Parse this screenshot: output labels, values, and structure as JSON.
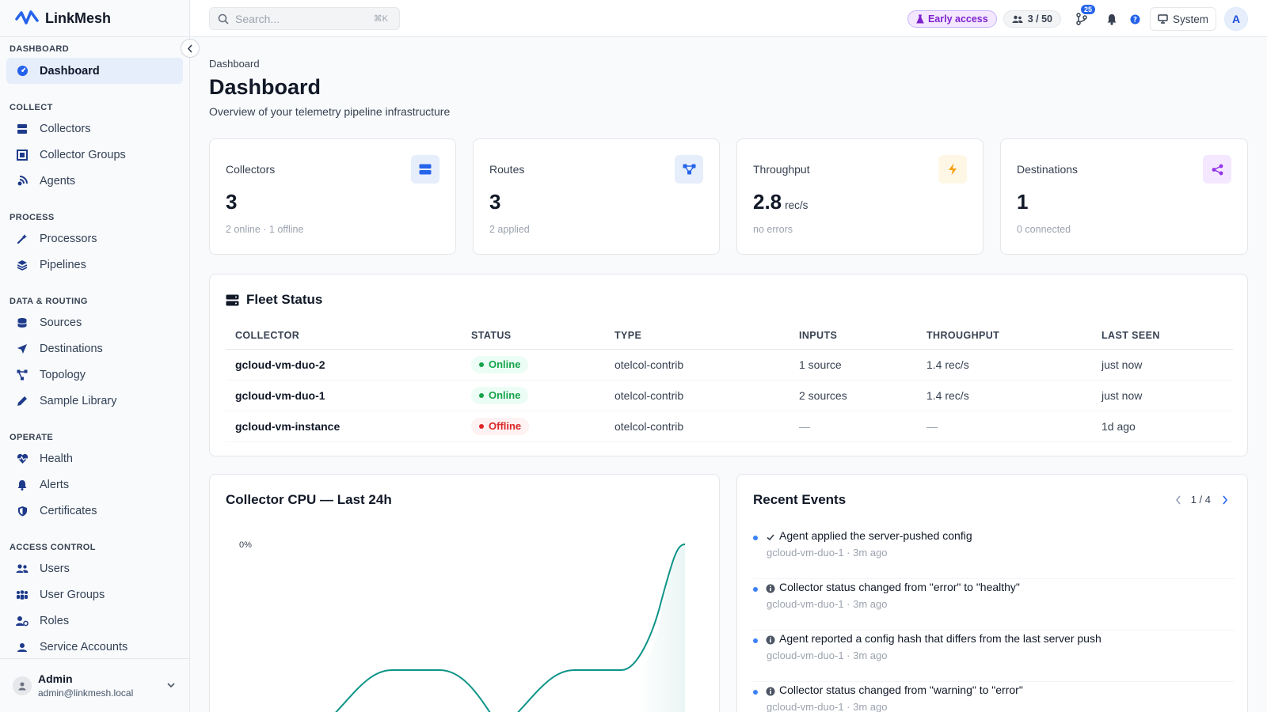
{
  "app": {
    "name": "LinkMesh"
  },
  "sidebar": {
    "sections": [
      {
        "title": "DASHBOARD",
        "items": [
          {
            "label": "Dashboard",
            "icon": "dashboard-icon",
            "active": true
          }
        ]
      },
      {
        "title": "COLLECT",
        "items": [
          {
            "label": "Collectors",
            "icon": "server-icon"
          },
          {
            "label": "Collector Groups",
            "icon": "collector-groups-icon"
          },
          {
            "label": "Agents",
            "icon": "agents-icon"
          }
        ]
      },
      {
        "title": "PROCESS",
        "items": [
          {
            "label": "Processors",
            "icon": "processors-icon"
          },
          {
            "label": "Pipelines",
            "icon": "layers-icon"
          }
        ]
      },
      {
        "title": "DATA & ROUTING",
        "items": [
          {
            "label": "Sources",
            "icon": "database-icon"
          },
          {
            "label": "Destinations",
            "icon": "send-icon"
          },
          {
            "label": "Topology",
            "icon": "topology-icon"
          },
          {
            "label": "Sample Library",
            "icon": "pen-icon"
          }
        ]
      },
      {
        "title": "OPERATE",
        "items": [
          {
            "label": "Health",
            "icon": "heart-pulse-icon"
          },
          {
            "label": "Alerts",
            "icon": "bell-icon"
          },
          {
            "label": "Certificates",
            "icon": "shield-icon"
          }
        ]
      },
      {
        "title": "ACCESS CONTROL",
        "items": [
          {
            "label": "Users",
            "icon": "users-icon"
          },
          {
            "label": "User Groups",
            "icon": "user-groups-icon"
          },
          {
            "label": "Roles",
            "icon": "roles-icon"
          },
          {
            "label": "Service Accounts",
            "icon": "service-accounts-icon"
          }
        ]
      }
    ],
    "user": {
      "name": "Admin",
      "email": "admin@linkmesh.local"
    }
  },
  "topbar": {
    "search_placeholder": "Search...",
    "search_shortcut": "⌘K",
    "early_access": "Early access",
    "users_count": "3 / 50",
    "pr_badge": "25",
    "system_label": "System",
    "avatar_initial": "A"
  },
  "page": {
    "breadcrumb": "Dashboard",
    "title": "Dashboard",
    "subtitle": "Overview of your telemetry pipeline infrastructure"
  },
  "stats": [
    {
      "label": "Collectors",
      "value": "3",
      "unit": "",
      "sub": "2 online · 1 offline",
      "icon": "server-icon",
      "color": "#2563eb",
      "bg": "#e6eefb"
    },
    {
      "label": "Routes",
      "value": "3",
      "unit": "",
      "sub": "2 applied",
      "icon": "routes-icon",
      "color": "#2563eb",
      "bg": "#e6eefb"
    },
    {
      "label": "Throughput",
      "value": "2.8",
      "unit": "rec/s",
      "sub": "no errors",
      "icon": "bolt-icon",
      "color": "#f59e0b",
      "bg": "#fff7e6"
    },
    {
      "label": "Destinations",
      "value": "1",
      "unit": "",
      "sub": "0 connected",
      "icon": "share-icon",
      "color": "#9333ea",
      "bg": "#f3e8ff"
    }
  ],
  "fleet": {
    "title": "Fleet Status",
    "columns": [
      "COLLECTOR",
      "STATUS",
      "TYPE",
      "INPUTS",
      "THROUGHPUT",
      "LAST SEEN"
    ],
    "rows": [
      {
        "collector": "gcloud-vm-duo-2",
        "status": "Online",
        "type": "otelcol-contrib",
        "inputs": "1 source",
        "throughput": "1.4 rec/s",
        "last_seen": "just now"
      },
      {
        "collector": "gcloud-vm-duo-1",
        "status": "Online",
        "type": "otelcol-contrib",
        "inputs": "2 sources",
        "throughput": "1.4 rec/s",
        "last_seen": "just now"
      },
      {
        "collector": "gcloud-vm-instance",
        "status": "Offline",
        "type": "otelcol-contrib",
        "inputs": "—",
        "throughput": "—",
        "last_seen": "1d ago"
      }
    ]
  },
  "cpu_chart": {
    "title": "Collector CPU — Last 24h",
    "y_label": "0%",
    "line_color": "#0d9488"
  },
  "events": {
    "title": "Recent Events",
    "page": "1 / 4",
    "items": [
      {
        "icon": "check-icon",
        "text": "Agent applied the server-pushed config",
        "meta": "gcloud-vm-duo-1 · 3m ago"
      },
      {
        "icon": "info-icon",
        "text": "Collector status changed from \"error\" to \"healthy\"",
        "meta": "gcloud-vm-duo-1 · 3m ago"
      },
      {
        "icon": "info-icon",
        "text": "Agent reported a config hash that differs from the last server push",
        "meta": "gcloud-vm-duo-1 · 3m ago"
      },
      {
        "icon": "info-icon",
        "text": "Collector status changed from \"warning\" to \"error\"",
        "meta": "gcloud-vm-duo-1 · 3m ago"
      }
    ]
  }
}
